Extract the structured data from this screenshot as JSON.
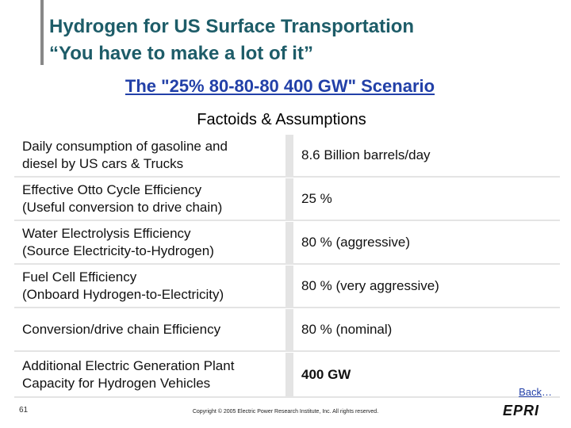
{
  "header": {
    "title_lines": [
      "Hydrogen for US Surface Transportation",
      "“You have to make a lot of it”"
    ],
    "subtitle": "The \"25% 80-80-80 400 GW\" Scenario"
  },
  "table": {
    "caption": "Factoids & Assumptions",
    "rows": [
      [
        "Daily consumption of gasoline and\ndiesel by US cars & Trucks",
        "8.6 Billion barrels/day"
      ],
      [
        "Effective Otto Cycle Efficiency\n(Useful conversion to drive chain)",
        "25 %"
      ],
      [
        "Water Electrolysis Efficiency\n(Source Electricity-to-Hydrogen)",
        "80 % (aggressive)"
      ],
      [
        "Fuel Cell Efficiency\n(Onboard Hydrogen-to-Electricity)",
        "80 % (very aggressive)"
      ],
      [
        "Conversion/drive chain Efficiency",
        "80 % (nominal)"
      ],
      [
        "Additional Electric Generation Plant\nCapacity for Hydrogen Vehicles",
        "400 GW"
      ]
    ]
  },
  "footer": {
    "back_link": "Back",
    "back_suffix": "…",
    "page_number": "61",
    "copyright": "Copyright © 2005 Electric Power Research Institute, Inc. All rights reserved.",
    "logo": "EPRI"
  }
}
